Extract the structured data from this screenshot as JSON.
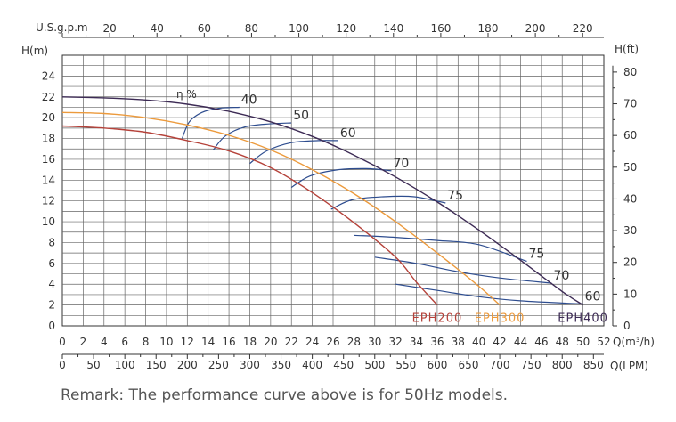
{
  "chart_data": {
    "type": "line",
    "title": "",
    "left_axis_label": "H(m)",
    "right_axis_label": "H(ft)",
    "top_axis_label": "U.S.g.p.m",
    "bottom_axis_label": "Q(m³/h)",
    "bottom2_axis_label": "Q(LPM)",
    "grid": true,
    "xlim": [
      0,
      52
    ],
    "ylim": [
      0,
      26
    ],
    "x_ticks": [
      "0",
      "2",
      "4",
      "6",
      "8",
      "10",
      "12",
      "14",
      "16",
      "18",
      "20",
      "22",
      "24",
      "26",
      "28",
      "30",
      "32",
      "34",
      "36",
      "38",
      "40",
      "42",
      "44",
      "46",
      "48",
      "50",
      "52"
    ],
    "y_ticks": [
      "0",
      "2",
      "4",
      "6",
      "8",
      "10",
      "12",
      "14",
      "16",
      "18",
      "20",
      "22",
      "24"
    ],
    "top_ticks": [
      "20",
      "40",
      "60",
      "80",
      "100",
      "120",
      "140",
      "160",
      "180",
      "200",
      "220"
    ],
    "lpm_ticks": [
      "0",
      "50",
      "100",
      "150",
      "200",
      "250",
      "300",
      "350",
      "400",
      "450",
      "500",
      "550",
      "600",
      "650",
      "700",
      "750",
      "800",
      "850"
    ],
    "ft_ticks": [
      "0",
      "10",
      "20",
      "30",
      "40",
      "50",
      "60",
      "70",
      "80"
    ],
    "efficiency_symbol": "η %",
    "series": [
      {
        "name": "EPH200",
        "color": "#b5423a",
        "x": [
          0,
          4,
          8,
          12,
          16,
          20,
          24,
          28,
          32,
          34,
          36
        ],
        "y": [
          19.2,
          19.0,
          18.6,
          17.8,
          16.8,
          15.2,
          12.8,
          9.9,
          6.6,
          4.2,
          2.0
        ]
      },
      {
        "name": "EPH300",
        "color": "#ec9a3c",
        "x": [
          0,
          4,
          8,
          12,
          16,
          20,
          24,
          28,
          32,
          36,
          40,
          42
        ],
        "y": [
          20.5,
          20.4,
          20.0,
          19.3,
          18.3,
          16.9,
          15.0,
          12.7,
          10.0,
          7.0,
          3.8,
          2.0
        ]
      },
      {
        "name": "EPH400",
        "color": "#3d2b55",
        "x": [
          0,
          4,
          8,
          12,
          16,
          20,
          24,
          28,
          32,
          36,
          40,
          44,
          48,
          50
        ],
        "y": [
          22.0,
          21.9,
          21.7,
          21.3,
          20.6,
          19.6,
          18.2,
          16.4,
          14.3,
          11.9,
          9.2,
          6.3,
          3.3,
          2.0
        ]
      }
    ],
    "efficiency_curves": [
      {
        "label": "40",
        "x": [
          11.5,
          12.2,
          13.4,
          15.0,
          17.0
        ],
        "y": [
          18.0,
          19.6,
          20.5,
          20.9,
          21.0
        ]
      },
      {
        "label": "50",
        "x": [
          14.5,
          15.6,
          17.5,
          19.8,
          22.0
        ],
        "y": [
          16.9,
          18.2,
          19.1,
          19.4,
          19.5
        ]
      },
      {
        "label": "60",
        "x": [
          18.0,
          19.6,
          22.0,
          24.6,
          26.5
        ],
        "y": [
          15.6,
          16.8,
          17.6,
          17.8,
          17.8
        ]
      },
      {
        "label": "70",
        "x": [
          22.0,
          23.8,
          26.5,
          29.2,
          31.6
        ],
        "y": [
          13.3,
          14.4,
          15.0,
          15.1,
          14.9
        ]
      },
      {
        "label": "75",
        "x": [
          25.8,
          27.8,
          30.8,
          33.8,
          36.8
        ],
        "y": [
          11.2,
          12.1,
          12.4,
          12.4,
          11.8
        ]
      },
      {
        "label": "75",
        "x": [
          28.0,
          32.0,
          36.0,
          40.0,
          44.6
        ],
        "y": [
          8.7,
          8.5,
          8.2,
          7.8,
          6.2
        ]
      },
      {
        "label": "70",
        "x": [
          30.0,
          34.0,
          38.0,
          42.0,
          47.0
        ],
        "y": [
          6.6,
          6.0,
          5.2,
          4.6,
          4.1
        ]
      },
      {
        "label": "60",
        "x": [
          32.0,
          36.0,
          40.0,
          44.0,
          50.0
        ],
        "y": [
          4.0,
          3.4,
          2.8,
          2.4,
          2.1
        ]
      }
    ],
    "remark": "Remark: The performance curve above is for 50Hz models."
  }
}
